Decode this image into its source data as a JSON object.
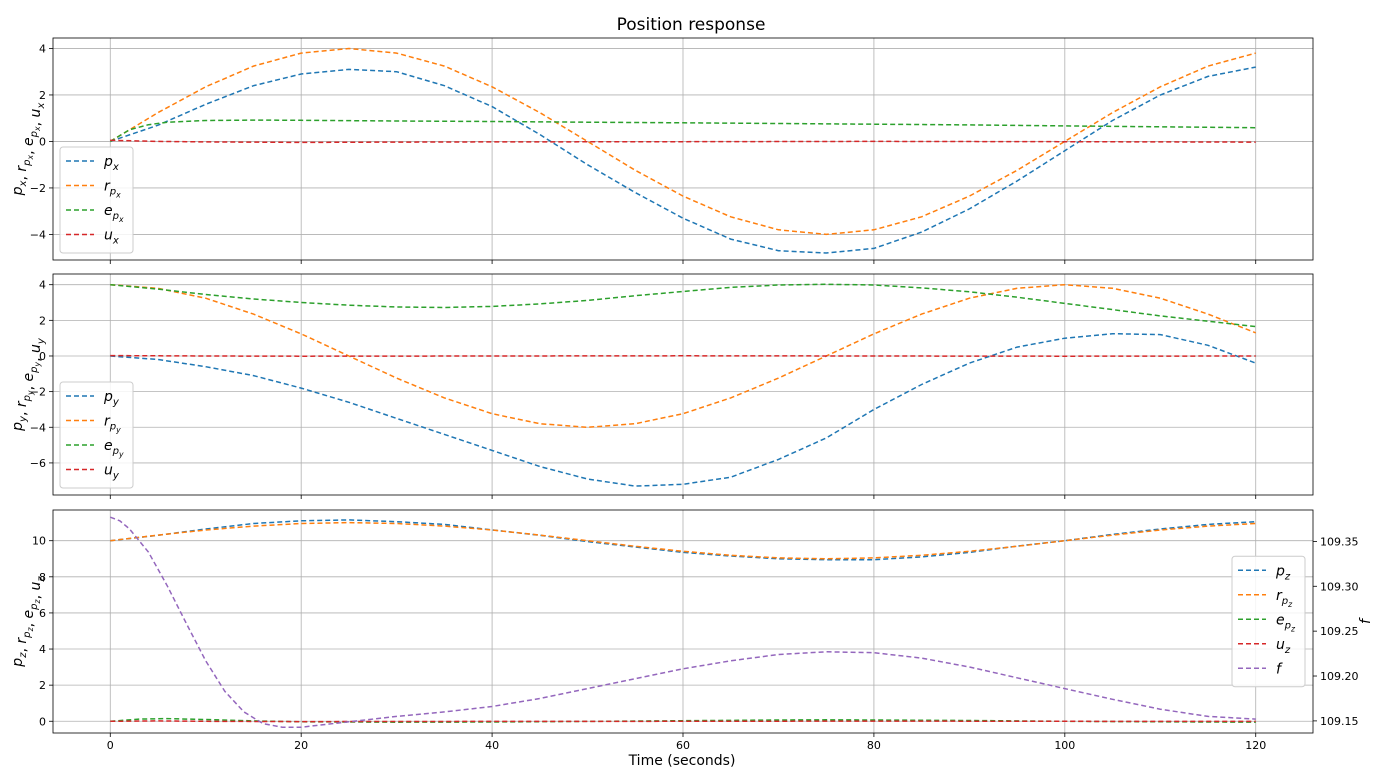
{
  "figure": {
    "title": "Position response",
    "xlabel": "Time (seconds)"
  },
  "chart_data": [
    {
      "type": "line",
      "ylabel": {
        "parts": [
          [
            "p",
            "x"
          ],
          [
            "r",
            "p",
            "x"
          ],
          [
            "e",
            "p",
            "x"
          ],
          [
            "u",
            "x"
          ]
        ]
      },
      "xlim": [
        -6,
        126
      ],
      "ylim": [
        -5.1,
        4.45
      ],
      "xticks": [
        0,
        20,
        40,
        60,
        80,
        100,
        120
      ],
      "yticks": [
        -4,
        -2,
        0,
        2,
        4
      ],
      "grid": true,
      "legend_position": "lower-left",
      "series": [
        {
          "name": [
            "p",
            "x"
          ],
          "color": "#1f77b4",
          "x": [
            0,
            5,
            10,
            15,
            20,
            25,
            30,
            35,
            40,
            45,
            50,
            55,
            60,
            65,
            70,
            75,
            80,
            85,
            90,
            95,
            100,
            105,
            110,
            115,
            120
          ],
          "y": [
            0.0,
            0.7,
            1.6,
            2.4,
            2.9,
            3.1,
            3.0,
            2.4,
            1.5,
            0.3,
            -1.0,
            -2.2,
            -3.3,
            -4.2,
            -4.7,
            -4.8,
            -4.6,
            -3.9,
            -2.9,
            -1.7,
            -0.4,
            0.9,
            2.0,
            2.8,
            3.2
          ]
        },
        {
          "name": [
            "r",
            "p",
            "x"
          ],
          "color": "#ff7f0e",
          "x": [
            0,
            5,
            10,
            15,
            20,
            25,
            30,
            35,
            40,
            45,
            50,
            55,
            60,
            65,
            70,
            75,
            80,
            85,
            90,
            95,
            100,
            105,
            110,
            115,
            120
          ],
          "y": [
            0.0,
            1.24,
            2.35,
            3.24,
            3.8,
            4.0,
            3.8,
            3.24,
            2.35,
            1.24,
            0.0,
            -1.24,
            -2.35,
            -3.24,
            -3.8,
            -4.0,
            -3.8,
            -3.24,
            -2.35,
            -1.24,
            0.0,
            1.24,
            2.35,
            3.24,
            3.8
          ]
        },
        {
          "name": [
            "e",
            "p",
            "x"
          ],
          "color": "#2ca02c",
          "x": [
            0,
            2,
            4,
            6,
            10,
            15,
            20,
            30,
            40,
            50,
            60,
            70,
            80,
            90,
            100,
            110,
            120
          ],
          "y": [
            0.0,
            0.5,
            0.72,
            0.83,
            0.9,
            0.92,
            0.91,
            0.88,
            0.86,
            0.83,
            0.8,
            0.77,
            0.74,
            0.71,
            0.67,
            0.63,
            0.59
          ]
        },
        {
          "name": [
            "u",
            "x"
          ],
          "color": "#d62728",
          "x": [
            0,
            5,
            10,
            20,
            30,
            40,
            60,
            80,
            100,
            120
          ],
          "y": [
            0.05,
            0.0,
            -0.02,
            -0.04,
            -0.03,
            -0.02,
            -0.01,
            0.0,
            -0.01,
            -0.03
          ]
        }
      ]
    },
    {
      "type": "line",
      "ylabel": {
        "parts": [
          [
            "p",
            "y"
          ],
          [
            "r",
            "p",
            "y"
          ],
          [
            "e",
            "p",
            "y"
          ],
          [
            "u",
            "y"
          ]
        ]
      },
      "xlim": [
        -6,
        126
      ],
      "ylim": [
        -7.8,
        4.6
      ],
      "xticks": [
        0,
        20,
        40,
        60,
        80,
        100,
        120
      ],
      "yticks": [
        -6,
        -4,
        -2,
        0,
        2,
        4
      ],
      "grid": true,
      "legend_position": "lower-left",
      "series": [
        {
          "name": [
            "p",
            "y"
          ],
          "color": "#1f77b4",
          "x": [
            0,
            5,
            10,
            15,
            20,
            25,
            30,
            35,
            40,
            45,
            50,
            55,
            60,
            65,
            70,
            75,
            80,
            85,
            90,
            95,
            100,
            105,
            110,
            115,
            120
          ],
          "y": [
            0.0,
            -0.2,
            -0.6,
            -1.1,
            -1.8,
            -2.6,
            -3.5,
            -4.4,
            -5.3,
            -6.2,
            -6.9,
            -7.3,
            -7.2,
            -6.8,
            -5.8,
            -4.6,
            -3.0,
            -1.6,
            -0.4,
            0.5,
            1.0,
            1.25,
            1.2,
            0.6,
            -0.4
          ]
        },
        {
          "name": [
            "r",
            "p",
            "y"
          ],
          "color": "#ff7f0e",
          "x": [
            0,
            5,
            10,
            15,
            20,
            25,
            30,
            35,
            40,
            45,
            50,
            55,
            60,
            65,
            70,
            75,
            80,
            85,
            90,
            95,
            100,
            105,
            110,
            115,
            120
          ],
          "y": [
            4.0,
            3.8,
            3.24,
            2.35,
            1.24,
            0.0,
            -1.24,
            -2.35,
            -3.24,
            -3.8,
            -4.0,
            -3.8,
            -3.24,
            -2.35,
            -1.24,
            0.0,
            1.24,
            2.35,
            3.24,
            3.8,
            4.0,
            3.8,
            3.24,
            2.35,
            1.3
          ]
        },
        {
          "name": [
            "e",
            "p",
            "y"
          ],
          "color": "#2ca02c",
          "x": [
            0,
            5,
            10,
            15,
            20,
            25,
            30,
            35,
            40,
            45,
            50,
            55,
            60,
            65,
            70,
            75,
            80,
            85,
            90,
            95,
            100,
            105,
            110,
            115,
            120
          ],
          "y": [
            4.0,
            3.75,
            3.45,
            3.2,
            3.0,
            2.85,
            2.75,
            2.72,
            2.78,
            2.92,
            3.12,
            3.38,
            3.62,
            3.85,
            3.98,
            4.02,
            3.98,
            3.82,
            3.6,
            3.3,
            2.95,
            2.6,
            2.25,
            1.95,
            1.65
          ]
        },
        {
          "name": [
            "u",
            "y"
          ],
          "color": "#d62728",
          "x": [
            0,
            10,
            20,
            40,
            60,
            80,
            100,
            120
          ],
          "y": [
            0.02,
            0.0,
            -0.01,
            0.0,
            0.01,
            0.0,
            -0.01,
            0.0
          ]
        }
      ]
    },
    {
      "type": "line",
      "ylabel": {
        "parts": [
          [
            "p",
            "z"
          ],
          [
            "r",
            "p",
            "z"
          ],
          [
            "e",
            "p",
            "z"
          ],
          [
            "u",
            "z"
          ]
        ]
      },
      "y2label": "f",
      "xlim": [
        -6,
        126
      ],
      "ylim": [
        -0.65,
        11.7
      ],
      "y2lim": [
        109.1365,
        109.385
      ],
      "xticks": [
        0,
        20,
        40,
        60,
        80,
        100,
        120
      ],
      "yticks": [
        0,
        2,
        4,
        6,
        8,
        10
      ],
      "y2ticks": [
        "109.15",
        "109.20",
        "109.25",
        "109.30",
        "109.35"
      ],
      "grid": true,
      "legend_position": "center-right",
      "series": [
        {
          "name": [
            "p",
            "z"
          ],
          "color": "#1f77b4",
          "axis": "left",
          "x": [
            0,
            5,
            10,
            15,
            20,
            25,
            30,
            35,
            40,
            45,
            50,
            55,
            60,
            65,
            70,
            75,
            80,
            85,
            90,
            95,
            100,
            105,
            110,
            115,
            120
          ],
          "y": [
            10.0,
            10.3,
            10.65,
            10.95,
            11.1,
            11.15,
            11.05,
            10.9,
            10.6,
            10.3,
            9.95,
            9.65,
            9.35,
            9.15,
            9.0,
            8.95,
            8.95,
            9.1,
            9.35,
            9.7,
            10.0,
            10.35,
            10.65,
            10.9,
            11.05
          ]
        },
        {
          "name": [
            "r",
            "p",
            "z"
          ],
          "color": "#ff7f0e",
          "axis": "left",
          "x": [
            0,
            5,
            10,
            15,
            20,
            25,
            30,
            35,
            40,
            45,
            50,
            55,
            60,
            65,
            70,
            75,
            80,
            85,
            90,
            95,
            100,
            105,
            110,
            115,
            120
          ],
          "y": [
            10.0,
            10.31,
            10.59,
            10.81,
            10.95,
            11.0,
            10.95,
            10.81,
            10.59,
            10.31,
            10.0,
            9.69,
            9.41,
            9.19,
            9.05,
            9.0,
            9.05,
            9.19,
            9.41,
            9.69,
            10.0,
            10.31,
            10.59,
            10.81,
            10.95
          ]
        },
        {
          "name": [
            "e",
            "p",
            "z"
          ],
          "color": "#2ca02c",
          "axis": "left",
          "x": [
            0,
            3,
            6,
            10,
            15,
            20,
            30,
            40,
            50,
            60,
            70,
            75,
            80,
            90,
            100,
            110,
            120
          ],
          "y": [
            0.0,
            0.12,
            0.15,
            0.1,
            0.02,
            -0.03,
            -0.05,
            -0.04,
            -0.01,
            0.03,
            0.07,
            0.08,
            0.07,
            0.04,
            0.0,
            -0.03,
            -0.05
          ]
        },
        {
          "name": [
            "u",
            "z"
          ],
          "color": "#d62728",
          "axis": "left",
          "x": [
            0,
            5,
            10,
            20,
            40,
            60,
            80,
            100,
            120
          ],
          "y": [
            0.0,
            0.02,
            0.0,
            -0.02,
            -0.01,
            0.0,
            0.01,
            0.0,
            -0.01
          ]
        },
        {
          "name": [
            "f"
          ],
          "color": "#9467bd",
          "axis": "right",
          "x": [
            0,
            1,
            2,
            4,
            6,
            8,
            10,
            12,
            14,
            16,
            18,
            20,
            25,
            30,
            35,
            40,
            45,
            50,
            55,
            60,
            65,
            70,
            75,
            80,
            85,
            90,
            95,
            100,
            105,
            110,
            115,
            120
          ],
          "y": [
            109.377,
            109.373,
            109.364,
            109.338,
            109.3,
            109.258,
            109.217,
            109.183,
            109.16,
            109.147,
            109.143,
            109.143,
            109.149,
            109.155,
            109.16,
            109.166,
            109.175,
            109.186,
            109.197,
            109.208,
            109.217,
            109.224,
            109.227,
            109.226,
            109.22,
            109.21,
            109.198,
            109.186,
            109.174,
            109.163,
            109.155,
            109.152
          ]
        }
      ]
    }
  ]
}
